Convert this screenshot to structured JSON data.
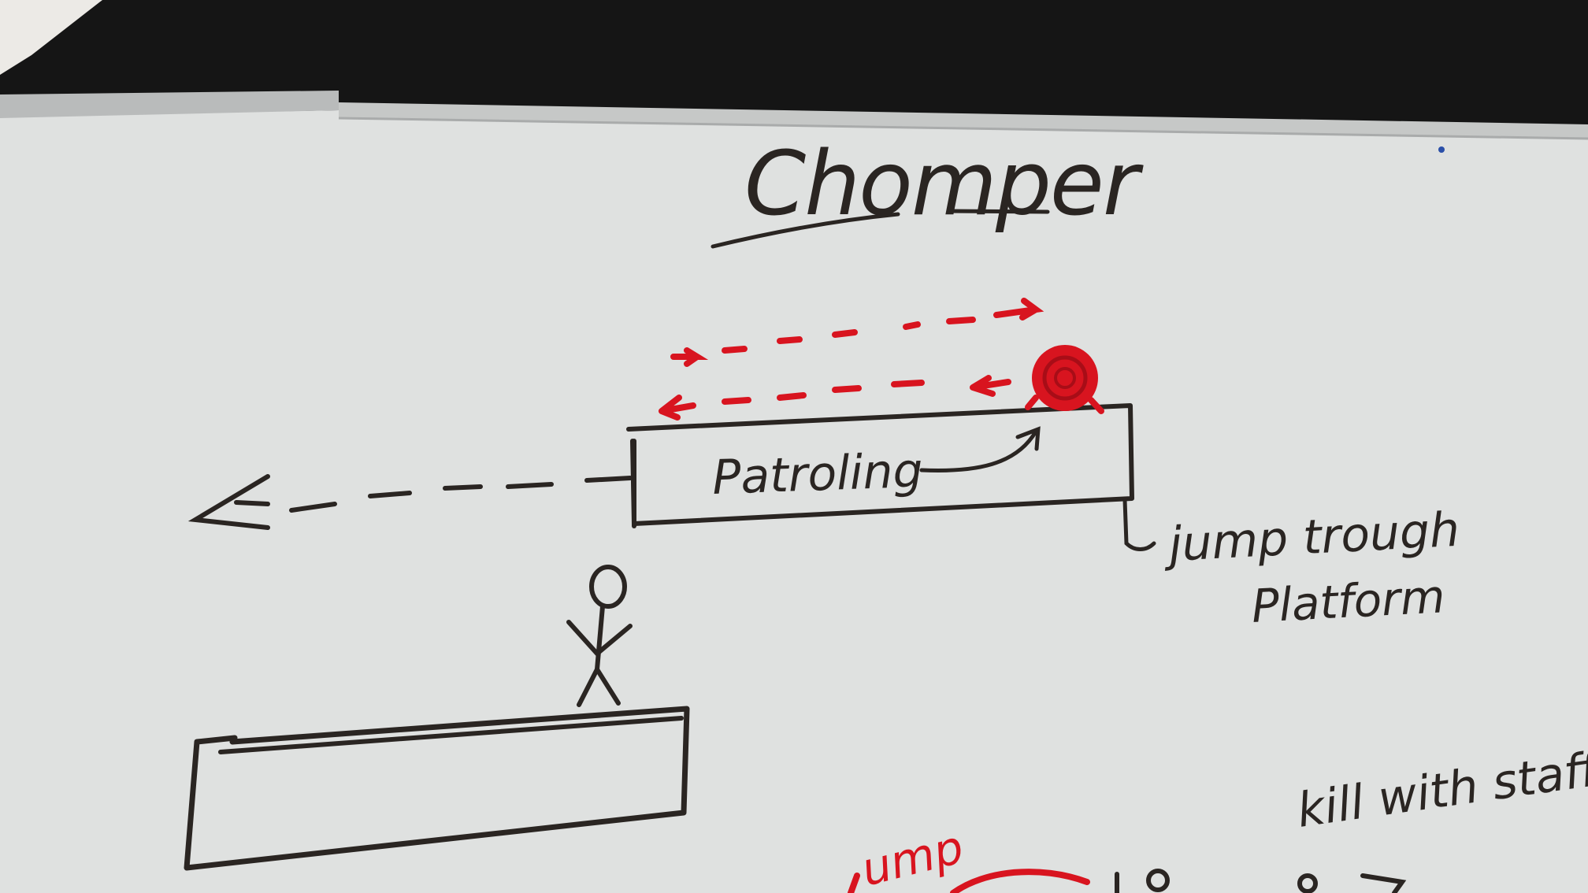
{
  "title": "Chomper",
  "labels": {
    "platform_label": "Patroling",
    "jump_through_line1": "jump trough",
    "jump_through_line2": "Platform",
    "kill_note": "kill with staff",
    "red_partial": "ump"
  },
  "colors": {
    "background_dark": "#151515",
    "board_white": "#dfe1e0",
    "marker_black": "#2a2522",
    "marker_red": "#d8141f",
    "tray_grey": "#b9bbbb"
  },
  "icons": [
    "chomper-enemy-icon",
    "stick-figure-player-icon",
    "left-arrow-icon",
    "patrol-arrows-icon"
  ]
}
